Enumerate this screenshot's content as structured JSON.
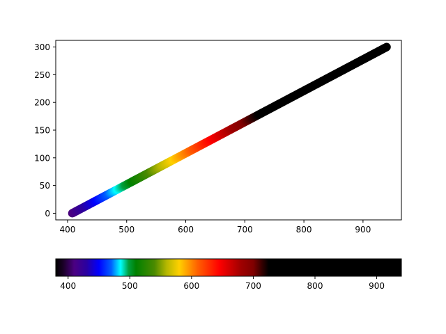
{
  "chart_data": [
    {
      "type": "scatter",
      "title": "",
      "xlabel": "",
      "ylabel": "",
      "xlim": [
        380,
        965
      ],
      "ylim": [
        -12,
        312
      ],
      "x_ticks": [
        400,
        500,
        600,
        700,
        800,
        900
      ],
      "y_ticks": [
        0,
        50,
        100,
        150,
        200,
        250,
        300
      ],
      "grid": false,
      "legend": "none",
      "series": [
        {
          "x_start": 408,
          "x_end": 940,
          "y_start": 0,
          "y_end": 300,
          "marker": "circle",
          "color_map": "wavelength-spectrum"
        }
      ]
    },
    {
      "type": "colorbar",
      "orientation": "horizontal",
      "range": [
        380,
        940
      ],
      "ticks": [
        400,
        500,
        600,
        700,
        800,
        900
      ],
      "color_stops": [
        {
          "value": 380,
          "color": "#000000"
        },
        {
          "value": 392,
          "color": "#1a0026"
        },
        {
          "value": 410,
          "color": "#4b0082"
        },
        {
          "value": 430,
          "color": "#2a00a0"
        },
        {
          "value": 450,
          "color": "#0000ff"
        },
        {
          "value": 470,
          "color": "#0060ff"
        },
        {
          "value": 485,
          "color": "#00ffff"
        },
        {
          "value": 498,
          "color": "#00a040"
        },
        {
          "value": 510,
          "color": "#008000"
        },
        {
          "value": 540,
          "color": "#4a8a00"
        },
        {
          "value": 560,
          "color": "#b8b800"
        },
        {
          "value": 580,
          "color": "#ffd000"
        },
        {
          "value": 610,
          "color": "#ff6000"
        },
        {
          "value": 645,
          "color": "#ff0000"
        },
        {
          "value": 680,
          "color": "#a00000"
        },
        {
          "value": 700,
          "color": "#800000"
        },
        {
          "value": 715,
          "color": "#300000"
        },
        {
          "value": 725,
          "color": "#000000"
        },
        {
          "value": 940,
          "color": "#000000"
        }
      ]
    }
  ]
}
